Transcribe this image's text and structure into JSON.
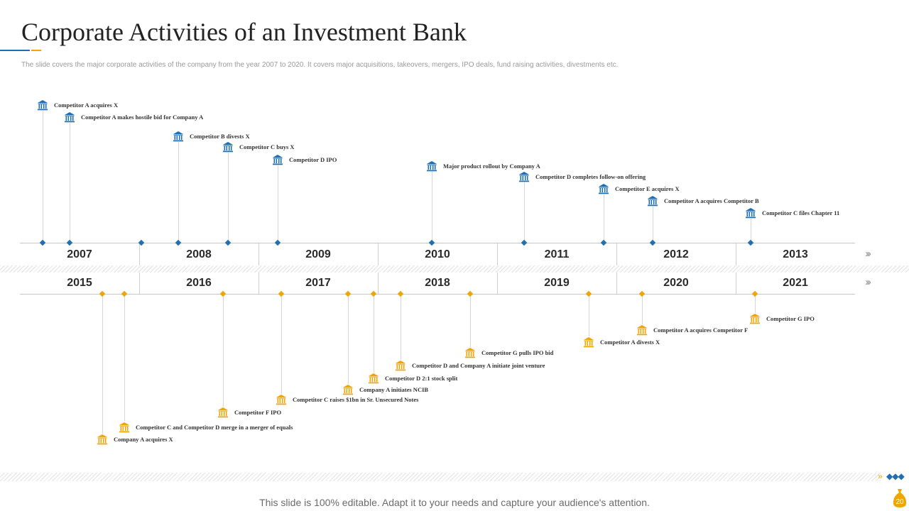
{
  "title": "Corporate Activities of an Investment Bank",
  "subtitle": "The slide covers the major corporate activities of the company from the year 2007 to 2020. It covers major acquisitions, takeovers, mergers, IPO deals, fund raising activities, divestments etc.",
  "colors": {
    "blue": "#1f6fb5",
    "orange": "#f0a500"
  },
  "top_timeline": {
    "years": [
      "2007",
      "2008",
      "2009",
      "2010",
      "2011",
      "2012",
      "2013"
    ],
    "icon": "bank-icon",
    "events": [
      {
        "label": "Competitor A acquires X"
      },
      {
        "label": "Competitor A makes hostile bid for Company A"
      },
      {
        "label": "Competitor B divests X"
      },
      {
        "label": "Competitor C buys X"
      },
      {
        "label": "Competitor D IPO"
      },
      {
        "label": "Major product rollout by Company A"
      },
      {
        "label": "Competitor D completes follow-on offering"
      },
      {
        "label": "Competitor E acquires X"
      },
      {
        "label": "Competitor A acquires Competitor B"
      },
      {
        "label": "Competitor C files Chapter 11"
      }
    ]
  },
  "bottom_timeline": {
    "years": [
      "2015",
      "2016",
      "2017",
      "2018",
      "2019",
      "2020",
      "2021"
    ],
    "icon": "bank-icon",
    "events": [
      {
        "label": "Company A acquires X"
      },
      {
        "label": "Competitor C and Competitor D merge in a merger of equals"
      },
      {
        "label": "Competitor F IPO"
      },
      {
        "label": "Competitor C raises $1bn in Sr. Unsecured Notes"
      },
      {
        "label": "Company A initiates NCIB"
      },
      {
        "label": "Competitor D 2:1 stock split"
      },
      {
        "label": "Competitor D and Company A initiate joint venture"
      },
      {
        "label": "Competitor G pulls IPO bid"
      },
      {
        "label": "Competitor A divests X"
      },
      {
        "label": "Competitor A acquires Competitor F"
      },
      {
        "label": "Competitor G IPO"
      }
    ]
  },
  "arrows": "›››",
  "footer": "This slide is 100% editable. Adapt it to your needs and capture your audience's attention.",
  "page_number": "20"
}
